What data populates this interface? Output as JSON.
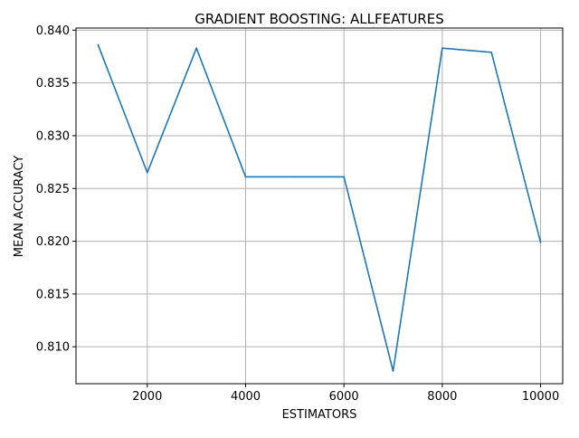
{
  "chart_data": {
    "type": "line",
    "title": "GRADIENT BOOSTING: ALLFEATURES",
    "xlabel": "ESTIMATORS",
    "ylabel": "MEAN ACCURACY",
    "grid": true,
    "xlim": [
      550,
      10450
    ],
    "ylim": [
      0.8065,
      0.8402
    ],
    "xticks": [
      2000,
      4000,
      6000,
      8000,
      10000
    ],
    "xtick_labels": [
      "2000",
      "4000",
      "6000",
      "8000",
      "10000"
    ],
    "yticks": [
      0.81,
      0.815,
      0.82,
      0.825,
      0.83,
      0.835,
      0.84
    ],
    "ytick_labels": [
      "0.810",
      "0.815",
      "0.820",
      "0.825",
      "0.830",
      "0.835",
      "0.840"
    ],
    "series": [
      {
        "color": "#1f77b4",
        "x": [
          1000,
          2000,
          3000,
          4000,
          5000,
          6000,
          7000,
          8000,
          9000,
          10000
        ],
        "y": [
          0.8386,
          0.8265,
          0.8383,
          0.8261,
          0.8261,
          0.8261,
          0.8077,
          0.8383,
          0.8379,
          0.8199
        ]
      }
    ]
  }
}
